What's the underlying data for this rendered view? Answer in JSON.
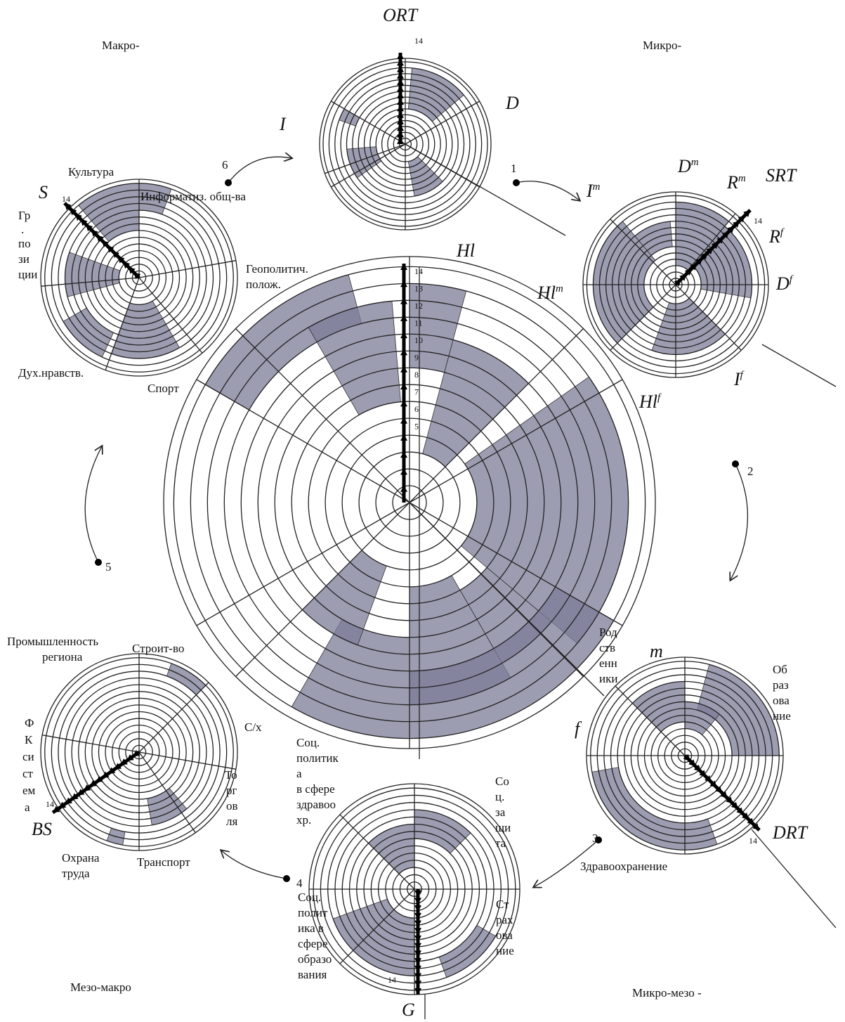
{
  "corners": {
    "macro": "Макро-",
    "micro": "Микро-",
    "meso_macro": "Мезо-макро",
    "micro_meso": "Микро-мезо -"
  },
  "ort": {
    "title": "ORT",
    "d": "D",
    "i": "I",
    "hl": "Hl",
    "scale": "14"
  },
  "srt": {
    "title": "SRT",
    "dm": {
      "base": "D",
      "sup": "m"
    },
    "rm": {
      "base": "R",
      "sup": "m"
    },
    "im": {
      "base": "I",
      "sup": "m"
    },
    "rf": {
      "base": "R",
      "sup": "f"
    },
    "df": {
      "base": "D",
      "sup": "f"
    },
    "hlm": {
      "base": "Hl",
      "sup": "m"
    },
    "hlf": {
      "base": "Hl",
      "sup": "f"
    },
    "if": {
      "base": "I",
      "sup": "f"
    },
    "scale": "14"
  },
  "steps": [
    "1",
    "2",
    "3",
    "4",
    "5",
    "6"
  ],
  "center": {
    "scale": [
      "14",
      "13",
      "12",
      "11",
      "10",
      "9",
      "8",
      "7",
      "6",
      "5"
    ]
  },
  "macro": {
    "s": "S",
    "scale": "14",
    "culture": "Культура",
    "info": "Информатиз. общ-ва",
    "geo": [
      "Геополитич.",
      "полож."
    ],
    "pos": [
      "Гр",
      ".",
      "по",
      "зи",
      "ции"
    ],
    "moral": "Дух.нравств.",
    "sport": "Спорт"
  },
  "meso": {
    "bs": "BS",
    "scale": "14",
    "industry": [
      "Промышленность",
      "региона"
    ],
    "build": "Строит-во",
    "agri": "С/х",
    "fk": [
      "Ф",
      "К",
      "си",
      "ст",
      "ем",
      "а"
    ],
    "trade": [
      "То",
      "рг",
      "ов",
      "ля"
    ],
    "safety": [
      "Охрана",
      "труда"
    ],
    "transport": "Транспорт"
  },
  "social": {
    "g": "G",
    "scale": "14",
    "health": [
      "Соц.",
      "политик",
      "а",
      "в сфере",
      "здравоо",
      "хр."
    ],
    "protect": [
      "Со",
      "ц.",
      "за",
      "щи",
      "та"
    ],
    "edu": [
      "Соц.",
      "полит",
      "ика в",
      "сфере",
      "образо",
      "вания"
    ],
    "insur": [
      "Ст",
      "рах",
      "ова",
      "ние"
    ]
  },
  "drt": {
    "title": "DRT",
    "m": "m",
    "f": "f",
    "kin": [
      "Род",
      "ств",
      "енн",
      "ики"
    ],
    "edu": [
      "Об",
      "раз",
      "ова",
      "ние"
    ],
    "health": "Здравоохранение",
    "scale": "14"
  }
}
